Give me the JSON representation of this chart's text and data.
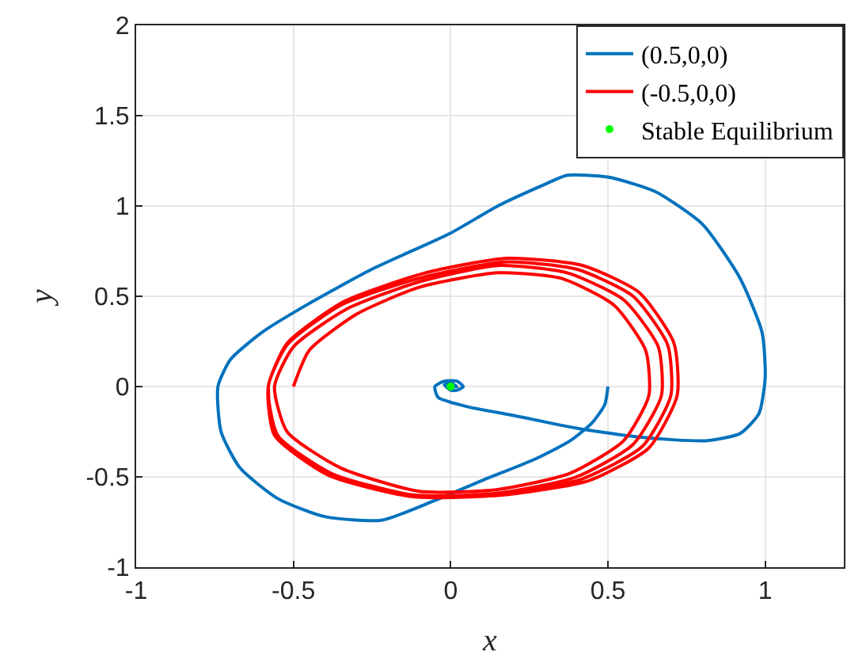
{
  "chart_data": {
    "type": "line",
    "xlabel": "x",
    "ylabel": "y",
    "xlim": [
      -1,
      1.25
    ],
    "ylim": [
      -1,
      2
    ],
    "xticks": [
      -1,
      -0.5,
      0,
      0.5,
      1
    ],
    "yticks": [
      -1,
      -0.5,
      0,
      0.5,
      1,
      1.5,
      2
    ],
    "grid": true,
    "legend": "top right",
    "series": [
      {
        "name": "(0.5,0,0)",
        "color": "#0072bd",
        "x": [
          0.5,
          0.49,
          0.45,
          0.38,
          0.27,
          0.1,
          -0.05,
          -0.22,
          -0.4,
          -0.55,
          -0.67,
          -0.73,
          -0.74,
          -0.7,
          -0.6,
          -0.45,
          -0.25,
          0,
          0.15,
          0.3,
          0.37,
          0.5,
          0.65,
          0.8,
          0.92,
          0.99,
          1.0,
          0.98,
          0.92,
          0.81,
          0.6,
          0.4,
          0.2,
          0.05,
          -0.04,
          -0.05,
          -0.02,
          0.02,
          0.04,
          0.02,
          0,
          -0.02,
          0,
          0.02,
          0
        ],
        "values": [
          0,
          -0.1,
          -0.2,
          -0.3,
          -0.4,
          -0.52,
          -0.63,
          -0.74,
          -0.72,
          -0.62,
          -0.45,
          -0.25,
          0,
          0.15,
          0.3,
          0.46,
          0.65,
          0.85,
          1.0,
          1.12,
          1.17,
          1.16,
          1.08,
          0.9,
          0.6,
          0.3,
          0.05,
          -0.15,
          -0.26,
          -0.3,
          -0.28,
          -0.23,
          -0.16,
          -0.11,
          -0.06,
          0,
          0.03,
          0.03,
          0,
          -0.02,
          -0.02,
          0.01,
          0.02,
          0,
          0
        ]
      },
      {
        "name": "(-0.5,0,0)",
        "color": "#ff0000",
        "x": [
          -0.5,
          -0.45,
          -0.3,
          -0.1,
          0.15,
          0.35,
          0.52,
          0.62,
          0.63,
          0.55,
          0.38,
          0.15,
          -0.1,
          -0.35,
          -0.52,
          -0.56,
          -0.5,
          -0.33,
          -0.1,
          0.15,
          0.37,
          0.55,
          0.66,
          0.67,
          0.58,
          0.4,
          0.15,
          -0.12,
          -0.38,
          -0.55,
          -0.58,
          -0.52,
          -0.35,
          -0.1,
          0.17,
          0.4,
          0.58,
          0.69,
          0.7,
          0.61,
          0.42,
          0.16,
          -0.12,
          -0.39,
          -0.56,
          -0.58,
          -0.52,
          -0.34,
          -0.08,
          0.18,
          0.42,
          0.6,
          0.71,
          0.72,
          0.63,
          0.44,
          0.17,
          -0.12,
          -0.39,
          -0.56,
          -0.58
        ],
        "values": [
          0,
          0.2,
          0.4,
          0.55,
          0.63,
          0.6,
          0.45,
          0.2,
          -0.05,
          -0.3,
          -0.48,
          -0.57,
          -0.58,
          -0.45,
          -0.25,
          0,
          0.22,
          0.43,
          0.58,
          0.67,
          0.63,
          0.48,
          0.22,
          -0.05,
          -0.32,
          -0.5,
          -0.59,
          -0.6,
          -0.48,
          -0.27,
          0,
          0.23,
          0.45,
          0.6,
          0.69,
          0.65,
          0.5,
          0.23,
          -0.05,
          -0.33,
          -0.51,
          -0.6,
          -0.61,
          -0.49,
          -0.27,
          0,
          0.24,
          0.47,
          0.63,
          0.71,
          0.67,
          0.52,
          0.24,
          -0.05,
          -0.34,
          -0.52,
          -0.6,
          -0.61,
          -0.49,
          -0.27,
          0
        ]
      },
      {
        "name": "Stable Equilibrium",
        "type": "scatter",
        "marker": "circle",
        "color": "#00ff00",
        "x": [
          0
        ],
        "values": [
          0
        ]
      }
    ]
  }
}
